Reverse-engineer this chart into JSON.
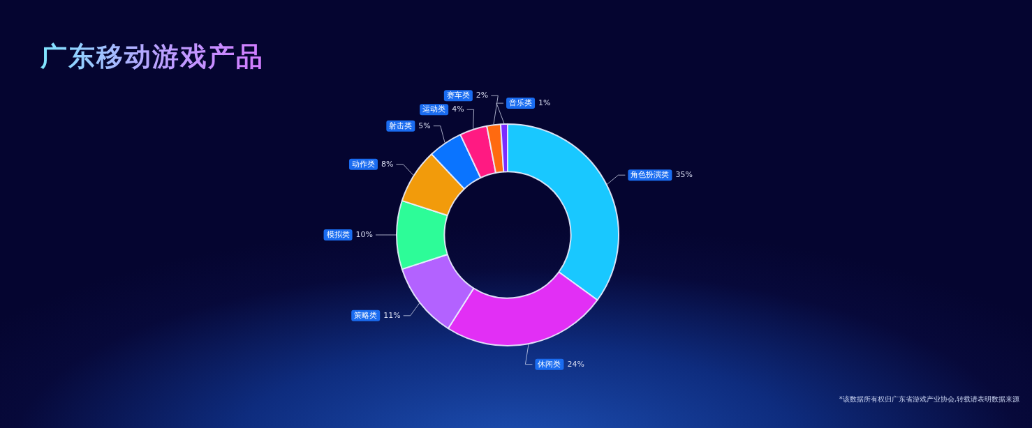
{
  "chart_data": {
    "type": "donut",
    "title": "广东移动游戏产品",
    "categories": [
      "角色扮演类",
      "休闲类",
      "策略类",
      "模拟类",
      "动作类",
      "射击类",
      "运动类",
      "赛车类",
      "音乐类"
    ],
    "values": [
      35,
      24,
      11,
      10,
      8,
      5,
      4,
      2,
      1
    ],
    "value_labels": [
      "35%",
      "24%",
      "11%",
      "10%",
      "8%",
      "5%",
      "4%",
      "2%",
      "1%"
    ],
    "colors": [
      "#19c8ff",
      "#e22ff5",
      "#b362ff",
      "#2dfc98",
      "#f29b0b",
      "#0a74ff",
      "#ff1a82",
      "#ff6a10",
      "#7a2cff"
    ],
    "legend": false,
    "annotations": [
      "*该数据所有权归广东省游戏产业协会,转载请表明数据来源"
    ]
  }
}
